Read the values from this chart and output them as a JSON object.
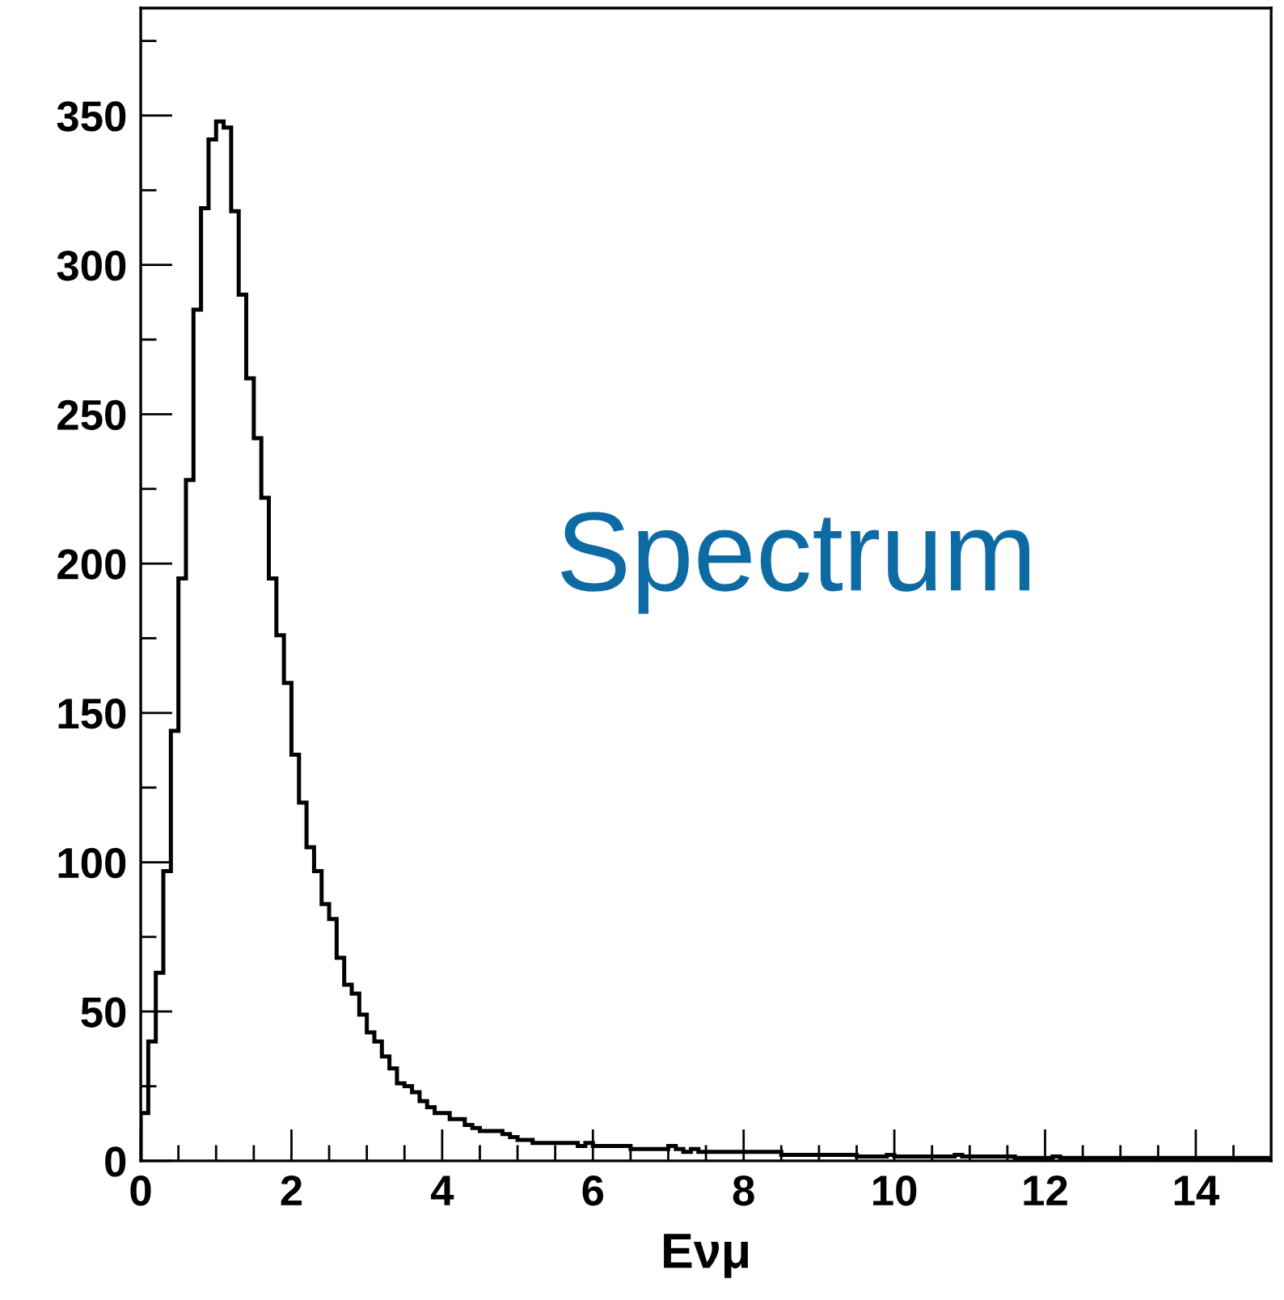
{
  "chart_data": {
    "type": "histogram",
    "xlabel": "Eνμ",
    "annotations": [
      "Spectrum"
    ],
    "color": "#000000",
    "bins": [
      0,
      0.1,
      0.2,
      0.3,
      0.4,
      0.5,
      0.6,
      0.7,
      0.8,
      0.9,
      1,
      1.1,
      1.2,
      1.3,
      1.4,
      1.5,
      1.6,
      1.7,
      1.8,
      1.9,
      2,
      2.1,
      2.2,
      2.3,
      2.4,
      2.5,
      2.6,
      2.7,
      2.8,
      2.9,
      3,
      3.1,
      3.2,
      3.3,
      3.4,
      3.5,
      3.6,
      3.7,
      3.8,
      3.9,
      4,
      4.1,
      4.2,
      4.3,
      4.4,
      4.5,
      4.6,
      4.7,
      4.8,
      4.9,
      5,
      5.1,
      5.2,
      5.3,
      5.4,
      5.5,
      5.6,
      5.7,
      5.8,
      5.9,
      6,
      6.1,
      6.2,
      6.3,
      6.4,
      6.5,
      6.6,
      6.7,
      6.8,
      6.9,
      7,
      7.1,
      7.2,
      7.3,
      7.4,
      7.5,
      7.6,
      7.7,
      7.8,
      7.9,
      8,
      8.1,
      8.2,
      8.3,
      8.4,
      8.5,
      8.6,
      8.7,
      8.8,
      8.9,
      9,
      9.1,
      9.2,
      9.3,
      9.4,
      9.5,
      9.6,
      9.7,
      9.8,
      9.9,
      10,
      10.1,
      10.2,
      10.3,
      10.4,
      10.5,
      10.6,
      10.7,
      10.8,
      10.9,
      11,
      11.1,
      11.2,
      11.3,
      11.4,
      11.5,
      11.6,
      11.7,
      11.8,
      11.9,
      12,
      12.1,
      12.2,
      12.3,
      12.4,
      12.5,
      12.6,
      12.7,
      12.8,
      12.9,
      13,
      13.1,
      13.2,
      13.3,
      13.4,
      13.5,
      13.6,
      13.7,
      13.8,
      13.9,
      14,
      14.1,
      14.2,
      14.3,
      14.4,
      14.5,
      14.6,
      14.7,
      14.8,
      14.9,
      15
    ],
    "values": [
      16,
      40,
      63,
      97,
      144,
      195,
      228,
      285,
      319,
      342,
      348,
      346,
      318,
      290,
      262,
      242,
      222,
      195,
      176,
      160,
      136,
      120,
      105,
      97,
      86,
      81,
      68,
      59,
      56,
      49,
      43,
      40,
      35,
      31,
      26,
      25,
      23,
      20,
      18,
      16,
      16,
      14,
      14,
      12,
      11,
      10,
      10,
      10,
      9,
      8,
      7,
      7,
      6,
      6,
      6,
      6,
      6,
      6,
      5,
      6,
      5,
      5,
      5,
      5,
      5,
      4,
      4,
      4,
      4,
      4,
      5,
      4,
      3,
      4,
      3,
      3,
      3,
      3,
      3,
      3,
      3,
      3,
      3,
      3,
      3,
      2,
      2,
      2,
      2,
      2,
      2,
      2,
      2,
      2,
      2,
      1.5,
      1.5,
      1.5,
      1.5,
      2,
      1.5,
      1.5,
      1.5,
      1.5,
      1.5,
      1.5,
      1.5,
      1.5,
      2,
      1.5,
      1.5,
      1.5,
      1.5,
      1.5,
      1.5,
      1.5,
      1,
      1,
      1,
      1,
      1,
      1.5,
      1,
      1,
      1,
      1,
      1,
      1,
      1,
      1,
      1,
      1,
      1,
      1,
      1,
      1,
      1,
      1,
      1,
      1,
      1,
      1,
      1,
      1,
      1,
      1,
      1,
      1,
      1,
      1
    ],
    "xlim": [
      0,
      15
    ],
    "xticks": [
      0,
      {
        "value": 0.5,
        "label": null
      },
      {
        "value": 1,
        "label": null
      },
      {
        "value": 1.5,
        "label": null
      },
      2,
      {
        "value": 2.5,
        "label": null
      },
      {
        "value": 3,
        "label": null
      },
      {
        "value": 3.5,
        "label": null
      },
      4,
      {
        "value": 4.5,
        "label": null
      },
      {
        "value": 5,
        "label": null
      },
      {
        "value": 5.5,
        "label": null
      },
      6,
      {
        "value": 6.5,
        "label": null
      },
      {
        "value": 7,
        "label": null
      },
      {
        "value": 7.5,
        "label": null
      },
      8,
      {
        "value": 8.5,
        "label": null
      },
      {
        "value": 9,
        "label": null
      },
      {
        "value": 9.5,
        "label": null
      },
      10,
      {
        "value": 10.5,
        "label": null
      },
      {
        "value": 11,
        "label": null
      },
      {
        "value": 11.5,
        "label": null
      },
      12,
      {
        "value": 12.5,
        "label": null
      },
      {
        "value": 13,
        "label": null
      },
      {
        "value": 13.5,
        "label": null
      },
      14,
      {
        "value": 14.5,
        "label": null
      }
    ],
    "ylim": [
      0,
      386
    ],
    "yticks": [
      0,
      {
        "value": 25,
        "label": null
      },
      50,
      {
        "value": 75,
        "label": null
      },
      100,
      {
        "value": 125,
        "label": null
      },
      150,
      {
        "value": 175,
        "label": null
      },
      200,
      {
        "value": 225,
        "label": null
      },
      250,
      {
        "value": 275,
        "label": null
      },
      300,
      {
        "value": 325,
        "label": null
      },
      350,
      {
        "value": 375,
        "label": null
      }
    ],
    "grid": false,
    "legend": false
  }
}
